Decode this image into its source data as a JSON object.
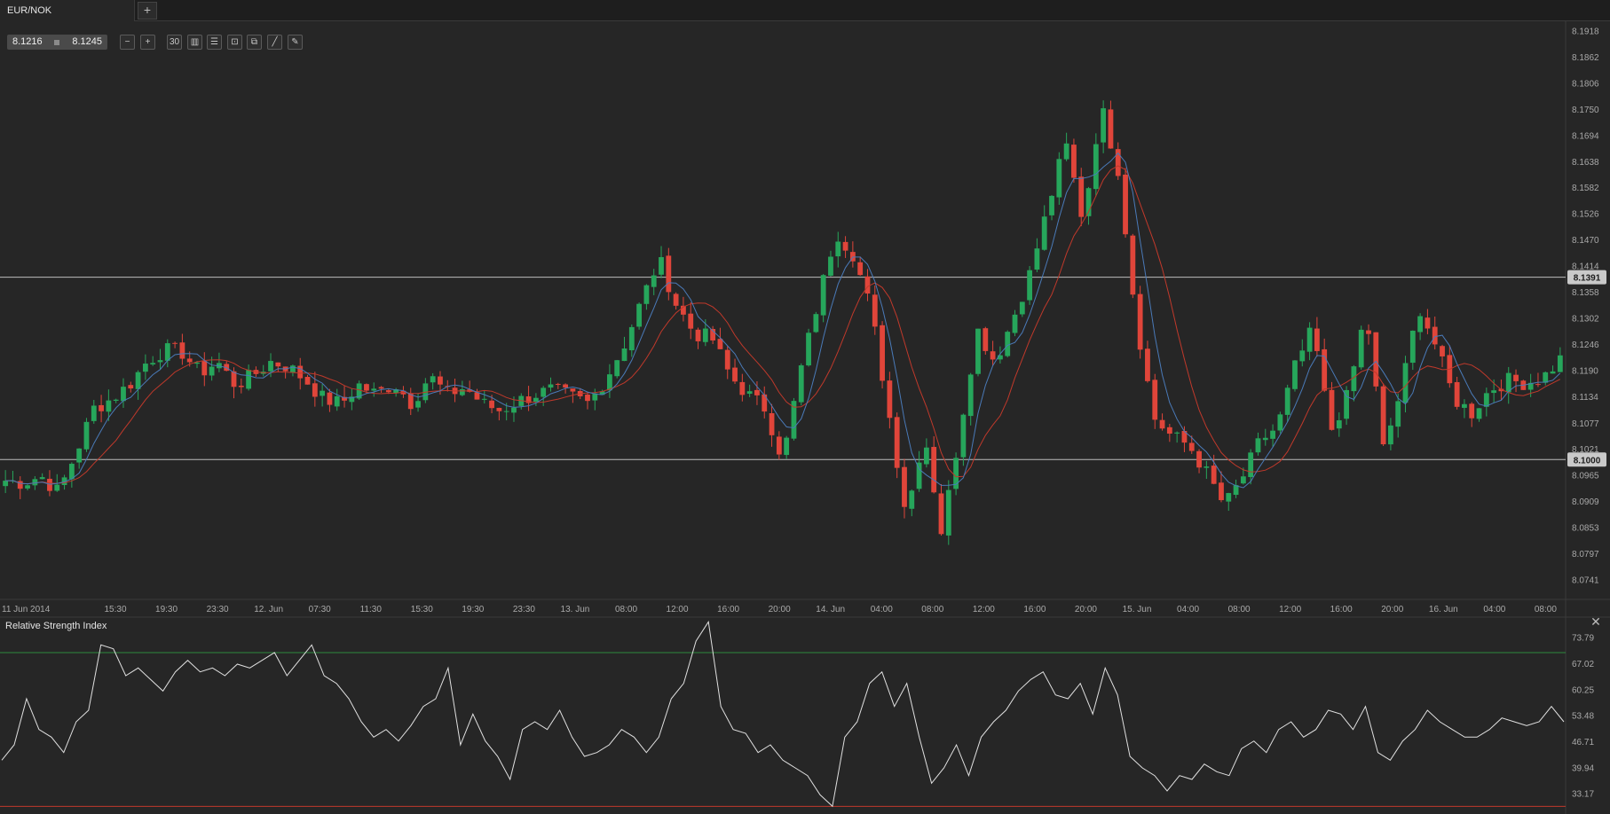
{
  "tab": {
    "title": "EUR/NOK",
    "add_label": "+"
  },
  "quote": {
    "bid": "8.1216",
    "ask": "8.1245"
  },
  "toolbar": {
    "tools": [
      {
        "name": "zoom-out-icon",
        "glyph": "−"
      },
      {
        "name": "zoom-in-icon",
        "glyph": "+"
      },
      {
        "name": "timeframe-button",
        "glyph": "30"
      },
      {
        "name": "chart-type-icon",
        "glyph": "▥"
      },
      {
        "name": "indicators-icon",
        "glyph": "☰"
      },
      {
        "name": "compare-icon",
        "glyph": "⊡"
      },
      {
        "name": "template-icon",
        "glyph": "⧉"
      },
      {
        "name": "draw-line-icon",
        "glyph": "╱"
      },
      {
        "name": "draw-pen-icon",
        "glyph": "✎"
      }
    ]
  },
  "chart_data": [
    {
      "type": "candlestick",
      "symbol": "EUR/NOK",
      "ylim": [
        8.07,
        8.194
      ],
      "y_ticks": [
        "8.1918",
        "8.1862",
        "8.1806",
        "8.1750",
        "8.1694",
        "8.1638",
        "8.1582",
        "8.1526",
        "8.1470",
        "8.1414",
        "8.1358",
        "8.1302",
        "8.1246",
        "8.1190",
        "8.1134",
        "8.1077",
        "8.1021",
        "8.0965",
        "8.0909",
        "8.0853",
        "8.0797",
        "8.0741"
      ],
      "x_ticks": [
        "11 Jun 2014",
        "15:30",
        "19:30",
        "23:30",
        "12. Jun",
        "07:30",
        "11:30",
        "15:30",
        "19:30",
        "23:30",
        "13. Jun",
        "08:00",
        "12:00",
        "16:00",
        "20:00",
        "14. Jun",
        "04:00",
        "08:00",
        "12:00",
        "16:00",
        "20:00",
        "15. Jun",
        "04:00",
        "08:00",
        "12:00",
        "16:00",
        "20:00",
        "16. Jun",
        "04:00",
        "08:00"
      ],
      "horizontal_lines": [
        {
          "value": 8.1391,
          "label": "8.1391"
        },
        {
          "value": 8.1,
          "label": "8.1000"
        }
      ],
      "colors": {
        "up": "#26a65b",
        "down": "#e0453a",
        "fast_ma": "#4a7ab8",
        "slow_ma": "#c0392b",
        "hline": "#bcbcbc"
      },
      "close_path": [
        8.0955,
        8.095,
        8.0965,
        8.093,
        8.1015,
        8.111,
        8.113,
        8.116,
        8.121,
        8.1235,
        8.123,
        8.1185,
        8.121,
        8.116,
        8.118,
        8.121,
        8.12,
        8.117,
        8.113,
        8.112,
        8.116,
        8.114,
        8.1165,
        8.112,
        8.118,
        8.114,
        8.1155,
        8.112,
        8.1105,
        8.1125,
        8.114,
        8.115,
        8.1135,
        8.112,
        8.1175,
        8.1245,
        8.134,
        8.143,
        8.133,
        8.127,
        8.126,
        8.118,
        8.114,
        8.111,
        8.1,
        8.119,
        8.134,
        8.149,
        8.144,
        8.132,
        8.11,
        8.088,
        8.106,
        8.084,
        8.106,
        8.128,
        8.121,
        8.13,
        8.14,
        8.154,
        8.168,
        8.151,
        8.176,
        8.162,
        8.13,
        8.109,
        8.105,
        8.103,
        8.097,
        8.09,
        8.096,
        8.104,
        8.107,
        8.12,
        8.128,
        8.106,
        8.114,
        8.132,
        8.102,
        8.115,
        8.133,
        8.124,
        8.113,
        8.11,
        8.115,
        8.117,
        8.1165,
        8.1175,
        8.1215
      ]
    },
    {
      "type": "line",
      "title": "Relative Strength Index",
      "ylim": [
        28.0,
        79.0
      ],
      "y_ticks": [
        "73.79",
        "67.02",
        "60.25",
        "53.48",
        "46.71",
        "39.94",
        "33.17"
      ],
      "overbought": 70,
      "oversold": 30,
      "colors": {
        "line": "#e0e0e0",
        "overbought": "#2e8b3e",
        "oversold": "#c0392b"
      },
      "values": [
        42,
        46,
        58,
        50,
        48,
        44,
        52,
        55,
        72,
        71,
        64,
        66,
        63,
        60,
        65,
        68,
        65,
        66,
        64,
        67,
        66,
        68,
        70,
        64,
        68,
        72,
        64,
        62,
        58,
        52,
        48,
        50,
        47,
        51,
        56,
        58,
        66,
        46,
        54,
        47,
        43,
        37,
        50,
        52,
        50,
        55,
        48,
        43,
        44,
        46,
        50,
        48,
        44,
        48,
        58,
        62,
        73,
        78,
        56,
        50,
        49,
        44,
        46,
        42,
        40,
        38,
        33,
        30,
        48,
        52,
        62,
        65,
        56,
        62,
        48,
        36,
        40,
        46,
        38,
        48,
        52,
        55,
        60,
        63,
        65,
        59,
        58,
        62,
        54,
        66,
        59,
        43,
        40,
        38,
        34,
        38,
        37,
        41,
        39,
        38,
        45,
        47,
        44,
        50,
        52,
        48,
        50,
        55,
        54,
        50,
        56,
        44,
        42,
        47,
        50,
        55,
        52,
        50,
        48,
        48,
        50,
        53,
        52,
        51,
        52,
        56,
        52
      ]
    }
  ]
}
